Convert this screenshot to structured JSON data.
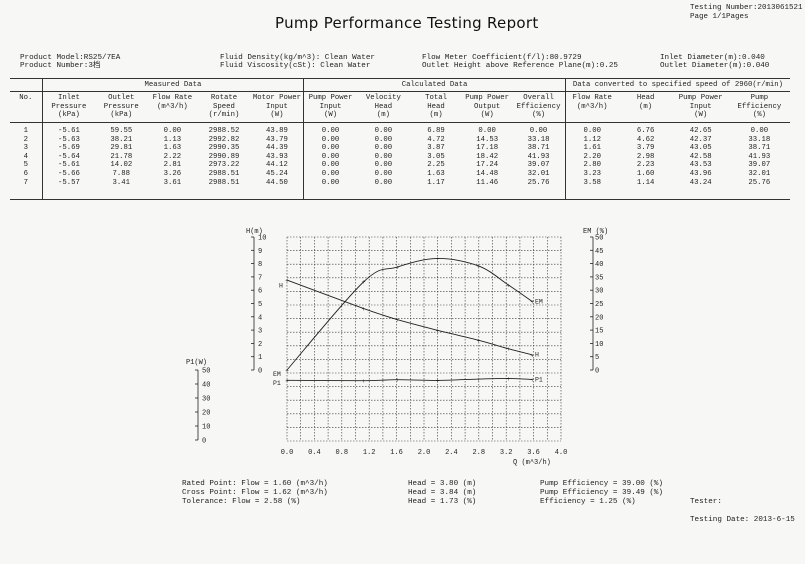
{
  "header": {
    "title": "Pump Performance Testing Report",
    "testing_number": "Testing Number:2013061521",
    "page": "Page 1/1Pages"
  },
  "info": {
    "product_model": "Product Model:RS25/7EA",
    "product_number": "Product Number:3档",
    "fluid_density": "Fluid Density(kg/m^3): Clean Water",
    "fluid_viscosity": "Fluid Viscosity(cSt): Clean Water",
    "flow_meter": "Flow Meter Coefficient(f/l):80.9729",
    "outlet_height": "Outlet Height above Reference Plane(m):0.25",
    "inlet_diameter": "Inlet Diameter(m):0.040",
    "outlet_diameter": "Outlet Diameter(m):0.040"
  },
  "table": {
    "groups": {
      "measured": "Measured Data",
      "calculated": "Calculated Data",
      "converted": "Data converted to specified speed of 2960(r/min)"
    },
    "columns": [
      {
        "name": "No.",
        "unit": ""
      },
      {
        "name": "Inlet\nPressure",
        "unit": "(kPa)"
      },
      {
        "name": "Outlet\nPressure",
        "unit": "(kPa)"
      },
      {
        "name": "Flow Rate",
        "unit": "(m^3/h)"
      },
      {
        "name": "Rotate\nSpeed",
        "unit": "(r/min)"
      },
      {
        "name": "Motor Power\nInput",
        "unit": "(W)"
      },
      {
        "name": "Pump Power\nInput",
        "unit": "(W)"
      },
      {
        "name": "Velocity\nHead",
        "unit": "(m)"
      },
      {
        "name": "Total\nHead",
        "unit": "(m)"
      },
      {
        "name": "Pump Power\nOutput",
        "unit": "(W)"
      },
      {
        "name": "Overall\nEfficiency",
        "unit": "(%)"
      },
      {
        "name": "Flow Rate",
        "unit": "(m^3/h)"
      },
      {
        "name": "Head",
        "unit": "(m)"
      },
      {
        "name": "Pump Power\nInput",
        "unit": "(W)"
      },
      {
        "name": "Pump\nEfficiency",
        "unit": "(%)"
      }
    ],
    "rows": [
      [
        "1",
        "-5.61",
        "59.55",
        "0.00",
        "2988.52",
        "43.89",
        "0.00",
        "0.00",
        "6.89",
        "0.00",
        "0.00",
        "0.00",
        "6.76",
        "42.65",
        "0.00"
      ],
      [
        "2",
        "-5.63",
        "38.21",
        "1.13",
        "2992.82",
        "43.79",
        "0.00",
        "0.00",
        "4.72",
        "14.53",
        "33.18",
        "1.12",
        "4.62",
        "42.37",
        "33.18"
      ],
      [
        "3",
        "-5.69",
        "29.81",
        "1.63",
        "2990.35",
        "44.39",
        "0.00",
        "0.00",
        "3.87",
        "17.18",
        "38.71",
        "1.61",
        "3.79",
        "43.05",
        "38.71"
      ],
      [
        "4",
        "-5.64",
        "21.78",
        "2.22",
        "2990.89",
        "43.93",
        "0.00",
        "0.00",
        "3.05",
        "18.42",
        "41.93",
        "2.20",
        "2.98",
        "42.58",
        "41.93"
      ],
      [
        "5",
        "-5.61",
        "14.02",
        "2.81",
        "2973.22",
        "44.12",
        "0.00",
        "0.00",
        "2.25",
        "17.24",
        "39.07",
        "2.80",
        "2.23",
        "43.53",
        "39.07"
      ],
      [
        "6",
        "-5.66",
        "7.88",
        "3.26",
        "2988.51",
        "45.24",
        "0.00",
        "0.00",
        "1.63",
        "14.48",
        "32.01",
        "3.23",
        "1.60",
        "43.96",
        "32.01"
      ],
      [
        "7",
        "-5.57",
        "3.41",
        "3.61",
        "2988.51",
        "44.50",
        "0.00",
        "0.00",
        "1.17",
        "11.46",
        "25.76",
        "3.58",
        "1.14",
        "43.24",
        "25.76"
      ]
    ]
  },
  "chart_data": {
    "type": "line",
    "xlabel": "Q (m^3/h)",
    "x_ticks": [
      "0.0",
      "0.4",
      "0.8",
      "1.2",
      "1.6",
      "2.0",
      "2.4",
      "2.8",
      "3.2",
      "3.6",
      "4.0"
    ],
    "xlim": [
      0,
      4.0
    ],
    "left_axis": {
      "label": "H(m)",
      "ylim": [
        0,
        10
      ],
      "ticks": [
        "0",
        "1",
        "2",
        "3",
        "4",
        "5",
        "6",
        "7",
        "8",
        "9",
        "10"
      ]
    },
    "right_axis": {
      "label": "EM (%)",
      "ylim": [
        0,
        50
      ],
      "ticks": [
        "0",
        "5",
        "10",
        "15",
        "20",
        "25",
        "30",
        "35",
        "40",
        "45",
        "50"
      ]
    },
    "power_axis": {
      "label": "P1(W)",
      "ylim": [
        0,
        50
      ],
      "ticks": [
        "0",
        "10",
        "20",
        "30",
        "40",
        "50"
      ]
    },
    "series": [
      {
        "name": "H",
        "axis": "left",
        "points": [
          [
            0.0,
            6.76
          ],
          [
            1.12,
            4.62
          ],
          [
            1.61,
            3.79
          ],
          [
            2.2,
            2.98
          ],
          [
            2.8,
            2.23
          ],
          [
            3.23,
            1.6
          ],
          [
            3.58,
            1.14
          ]
        ]
      },
      {
        "name": "EM",
        "axis": "right",
        "points": [
          [
            0.0,
            0.0
          ],
          [
            1.12,
            33.18
          ],
          [
            1.61,
            38.71
          ],
          [
            2.2,
            41.93
          ],
          [
            2.8,
            39.07
          ],
          [
            3.23,
            32.01
          ],
          [
            3.58,
            25.76
          ]
        ]
      },
      {
        "name": "P1",
        "axis": "power",
        "points": [
          [
            0.0,
            42.65
          ],
          [
            1.12,
            42.37
          ],
          [
            1.61,
            43.05
          ],
          [
            2.2,
            42.58
          ],
          [
            2.8,
            43.53
          ],
          [
            3.23,
            43.96
          ],
          [
            3.58,
            43.24
          ]
        ]
      }
    ],
    "curve_labels": {
      "h_left": "H",
      "h_right": "H",
      "em_left": "EM",
      "em_right": "EM",
      "p1_left": "P1",
      "p1_right": "P1"
    }
  },
  "footer": {
    "rated_point": "Rated Point:   Flow = 1.60 (m^3/h)",
    "cross_point": "Cross Point: Flow = 1.62 (m^3/h)",
    "tolerance": "Tolerance:     Flow = 2.58 (%)",
    "head1": "Head = 3.80 (m)",
    "head2": "Head = 3.84 (m)",
    "head3": "Head = 1.73 (%)",
    "eff1": "Pump Efficiency = 39.00 (%)",
    "eff2": "Pump Efficiency = 39.49 (%)",
    "eff3": "Efficiency = 1.25 (%)",
    "tester": "Tester:",
    "testing_date": "Testing Date: 2013-6-15"
  },
  "colors": {
    "ink": "#222222",
    "paper": "#f7f7f5"
  }
}
